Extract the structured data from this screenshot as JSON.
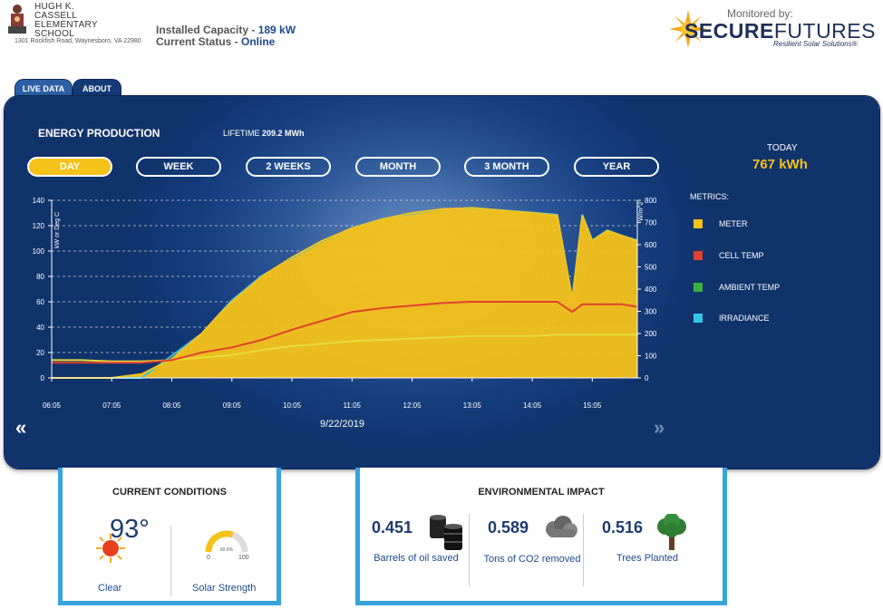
{
  "header": {
    "school_name": "HUGH K. CASSELL ELEMENTARY SCHOOL",
    "school_address": "1301 Rockfish Road, Waynesboro, VA 22980",
    "installed_capacity_label": "Installed Capacity - ",
    "installed_capacity_value": "189 kW",
    "current_status_label": "Current Status - ",
    "current_status_value": "Online",
    "monitored_by": "Monitored by:",
    "brand_bold": "SECURE",
    "brand_light": "FUTURES",
    "brand_tagline": "Resilient Solar Solutions®"
  },
  "tabs": [
    {
      "label": "LIVE DATA",
      "active": true
    },
    {
      "label": "ABOUT",
      "active": false
    }
  ],
  "energy": {
    "title": "ENERGY PRODUCTION",
    "lifetime_label": "LIFETIME",
    "lifetime_value": "209.2 MWh",
    "today_label": "TODAY",
    "today_value": "767 kWh",
    "date": "9/22/2019",
    "prev_icon": "double-chevron-left-icon",
    "next_icon": "double-chevron-right-icon"
  },
  "ranges": [
    {
      "label": "DAY",
      "active": true
    },
    {
      "label": "WEEK",
      "active": false
    },
    {
      "label": "2 WEEKS",
      "active": false
    },
    {
      "label": "MONTH",
      "active": false
    },
    {
      "label": "3 MONTH",
      "active": false
    },
    {
      "label": "YEAR",
      "active": false
    }
  ],
  "metrics": {
    "title": "METRICS:",
    "items": [
      {
        "label": "METER",
        "color": "#f5c219"
      },
      {
        "label": "CELL TEMP",
        "color": "#e0402f"
      },
      {
        "label": "AMBIENT TEMP",
        "color": "#3cb043"
      },
      {
        "label": "IRRADIANCE",
        "color": "#36c3e8"
      }
    ]
  },
  "chart_data": {
    "type": "area",
    "x": [
      "06:05",
      "06:35",
      "07:05",
      "07:35",
      "08:05",
      "08:20",
      "08:35",
      "08:50",
      "09:05",
      "09:35",
      "10:05",
      "10:35",
      "11:05",
      "11:35",
      "12:05",
      "12:35",
      "13:05",
      "13:35",
      "14:05",
      "14:30",
      "14:45",
      "14:55",
      "15:05",
      "15:20",
      "15:35",
      "15:50"
    ],
    "x_tick_labels": [
      "06:05",
      "07:05",
      "08:05",
      "09:05",
      "10:05",
      "11:05",
      "12:05",
      "13:05",
      "14:05",
      "15:05"
    ],
    "ylabel_left": "kW or Deg C",
    "ylabel_right": "W/m^2",
    "ylim_left": [
      0,
      140
    ],
    "ylim_right": [
      0,
      800
    ],
    "yticks_left": [
      0,
      20,
      40,
      60,
      80,
      100,
      120,
      140
    ],
    "yticks_right": [
      0,
      100,
      200,
      300,
      400,
      500,
      600,
      700,
      800
    ],
    "grid": true,
    "legend": "right",
    "series": [
      {
        "name": "METER",
        "axis": "left",
        "color": "#f5c219",
        "values": [
          0,
          0,
          0,
          3,
          15,
          25,
          35,
          48,
          60,
          80,
          95,
          108,
          118,
          125,
          130,
          133,
          134,
          132,
          130,
          128,
          62,
          128,
          108,
          116,
          112,
          108
        ]
      },
      {
        "name": "CELL TEMP",
        "axis": "left",
        "color": "#e0402f",
        "values": [
          12,
          12,
          12,
          12,
          14,
          17,
          20,
          22,
          24,
          30,
          38,
          45,
          52,
          55,
          57,
          59,
          60,
          60,
          60,
          60,
          52,
          58,
          58,
          58,
          58,
          56
        ]
      },
      {
        "name": "AMBIENT TEMP",
        "axis": "left",
        "color": "#3cb043",
        "values": [
          14,
          14,
          13,
          13,
          14,
          15,
          16,
          17,
          18,
          22,
          25,
          27,
          29,
          30,
          31,
          32,
          33,
          33,
          33,
          34,
          34,
          34,
          34,
          34,
          34,
          34
        ]
      },
      {
        "name": "IRRADIANCE",
        "axis": "right",
        "color": "#36c3e8",
        "values": [
          0,
          0,
          0,
          0,
          100,
          150,
          200,
          275,
          350,
          460,
          540,
          615,
          675,
          715,
          740,
          760,
          765,
          755,
          745,
          735,
          355,
          735,
          620,
          665,
          640,
          620
        ]
      }
    ]
  },
  "current_conditions": {
    "title": "CURRENT CONDITIONS",
    "temperature": "93°",
    "weather": "Clear",
    "weather_icon": "sun-icon",
    "solar_strength_label": "Solar Strength",
    "gauge_value_text": "60.6%",
    "gauge_value": 60.6,
    "gauge_min": "0",
    "gauge_max": "100"
  },
  "environmental_impact": {
    "title": "ENVIRONMENTAL IMPACT",
    "items": [
      {
        "value": "0.451",
        "label": "Barrels of oil saved",
        "icon": "oil-barrels-icon"
      },
      {
        "value": "0.589",
        "label": "Tons of CO2 removed",
        "icon": "cloud-icon"
      },
      {
        "value": "0.516",
        "label": "Trees Planted",
        "icon": "tree-icon"
      }
    ]
  }
}
